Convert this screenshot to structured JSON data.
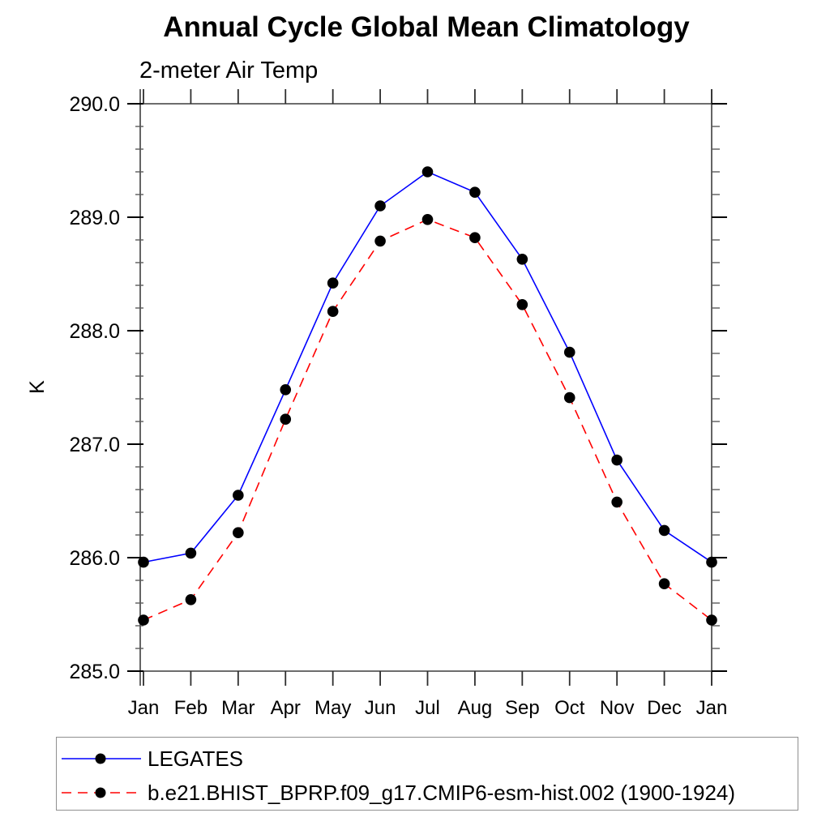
{
  "chart": {
    "title": "Annual Cycle Global Mean Climatology",
    "subtitle": "2-meter Air Temp",
    "ylabel": "K"
  },
  "chart_data": {
    "type": "line",
    "title": "Annual Cycle Global Mean Climatology",
    "subtitle": "2-meter Air Temp",
    "xlabel": "",
    "ylabel": "K",
    "categories": [
      "Jan",
      "Feb",
      "Mar",
      "Apr",
      "May",
      "Jun",
      "Jul",
      "Aug",
      "Sep",
      "Oct",
      "Nov",
      "Dec",
      "Jan"
    ],
    "ylim": [
      285.0,
      290.0
    ],
    "y_major_ticks": [
      285.0,
      286.0,
      287.0,
      288.0,
      289.0,
      290.0
    ],
    "y_major_tick_labels": [
      "285.0",
      "286.0",
      "287.0",
      "288.0",
      "289.0",
      "290.0"
    ],
    "y_minor_step": 0.2,
    "grid": false,
    "legend_position": "bottom-left-box",
    "marker_color": "#000000",
    "series": [
      {
        "name": "LEGATES",
        "color": "#0000ff",
        "line_style": "solid",
        "marker": "circle",
        "values": [
          285.96,
          286.04,
          286.55,
          287.48,
          288.42,
          289.1,
          289.4,
          289.22,
          288.63,
          287.81,
          286.86,
          286.24,
          285.96
        ]
      },
      {
        "name": "b.e21.BHIST_BPRP.f09_g17.CMIP6-esm-hist.002 (1900-1924)",
        "color": "#ff0000",
        "line_style": "dashed",
        "marker": "circle",
        "values": [
          285.45,
          285.63,
          286.22,
          287.22,
          288.17,
          288.79,
          288.98,
          288.82,
          288.23,
          287.41,
          286.49,
          285.77,
          285.45
        ]
      }
    ]
  }
}
